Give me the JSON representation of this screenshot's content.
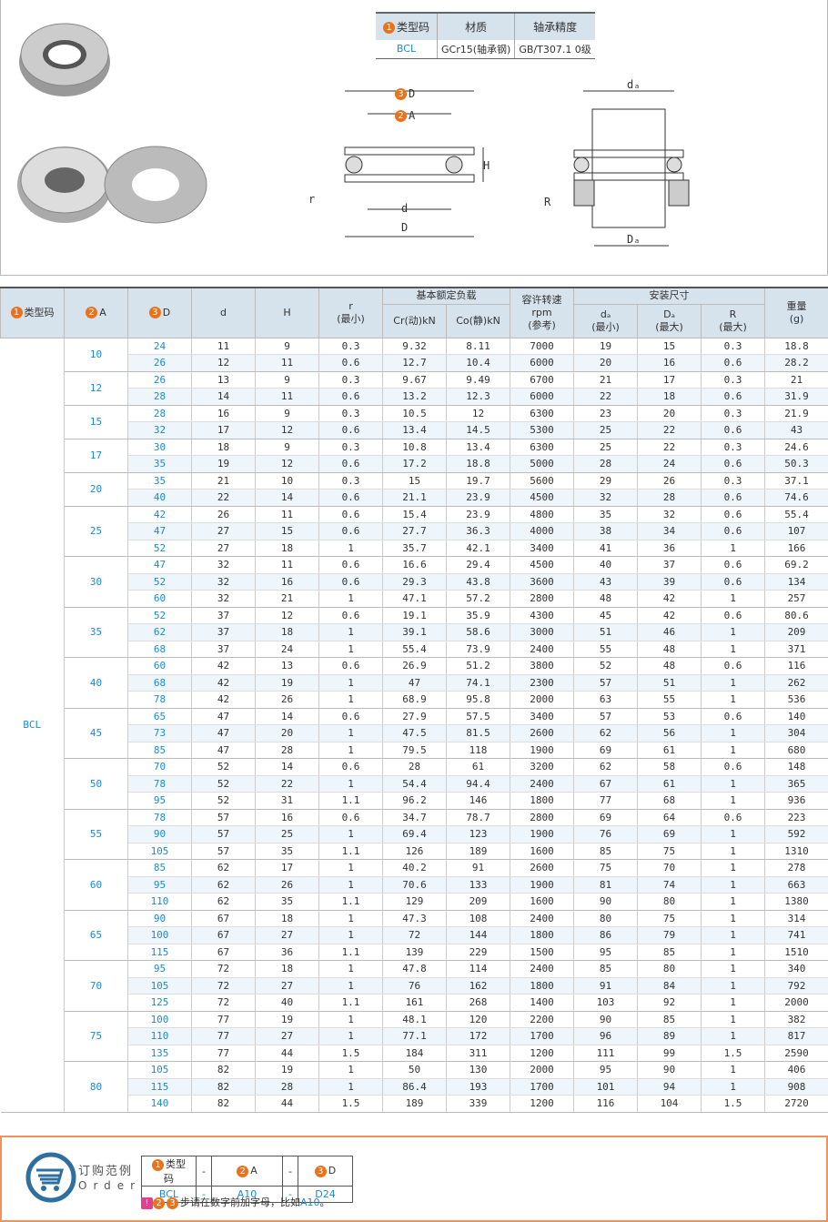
{
  "spec": {
    "headers": [
      "类型码",
      "材质",
      "轴承精度"
    ],
    "header_num": "1",
    "values": [
      "BCL",
      "GCr15(轴承钢)",
      "GB/T307.1 0级"
    ]
  },
  "drawing": {
    "label_D3": "D",
    "label_A2": "A",
    "num3": "3",
    "num2": "2",
    "H": "H",
    "r": "r",
    "d": "d",
    "D": "D",
    "da": "dₐ",
    "Da": "Dₐ",
    "R": "R"
  },
  "table": {
    "headers": {
      "type": "类型码",
      "A": "A",
      "D": "D",
      "d": "d",
      "H": "H",
      "r": "r",
      "r_sub": "(最小)",
      "load": "基本额定负载",
      "cr": "Cr(动)kN",
      "co": "Co(静)kN",
      "speed": "容许转速",
      "speed_unit": "rpm",
      "speed_sub": "(参考)",
      "install": "安装尺寸",
      "da": "dₐ",
      "da_sub": "(最小)",
      "Da": "Dₐ",
      "Da_sub": "(最大)",
      "R": "R",
      "R_sub": "(最大)",
      "weight": "重量",
      "weight_unit": "(g)",
      "n1": "1",
      "n2": "2",
      "n3": "3"
    },
    "type": "BCL",
    "groups": [
      {
        "A": "10",
        "rows": [
          [
            "24",
            "11",
            "9",
            "0.3",
            "9.32",
            "8.11",
            "7000",
            "19",
            "15",
            "0.3",
            "18.8"
          ],
          [
            "26",
            "12",
            "11",
            "0.6",
            "12.7",
            "10.4",
            "6000",
            "20",
            "16",
            "0.6",
            "28.2"
          ]
        ]
      },
      {
        "A": "12",
        "rows": [
          [
            "26",
            "13",
            "9",
            "0.3",
            "9.67",
            "9.49",
            "6700",
            "21",
            "17",
            "0.3",
            "21"
          ],
          [
            "28",
            "14",
            "11",
            "0.6",
            "13.2",
            "12.3",
            "6000",
            "22",
            "18",
            "0.6",
            "31.9"
          ]
        ]
      },
      {
        "A": "15",
        "rows": [
          [
            "28",
            "16",
            "9",
            "0.3",
            "10.5",
            "12",
            "6300",
            "23",
            "20",
            "0.3",
            "21.9"
          ],
          [
            "32",
            "17",
            "12",
            "0.6",
            "13.4",
            "14.5",
            "5300",
            "25",
            "22",
            "0.6",
            "43"
          ]
        ]
      },
      {
        "A": "17",
        "rows": [
          [
            "30",
            "18",
            "9",
            "0.3",
            "10.8",
            "13.4",
            "6300",
            "25",
            "22",
            "0.3",
            "24.6"
          ],
          [
            "35",
            "19",
            "12",
            "0.6",
            "17.2",
            "18.8",
            "5000",
            "28",
            "24",
            "0.6",
            "50.3"
          ]
        ]
      },
      {
        "A": "20",
        "rows": [
          [
            "35",
            "21",
            "10",
            "0.3",
            "15",
            "19.7",
            "5600",
            "29",
            "26",
            "0.3",
            "37.1"
          ],
          [
            "40",
            "22",
            "14",
            "0.6",
            "21.1",
            "23.9",
            "4500",
            "32",
            "28",
            "0.6",
            "74.6"
          ]
        ]
      },
      {
        "A": "25",
        "rows": [
          [
            "42",
            "26",
            "11",
            "0.6",
            "15.4",
            "23.9",
            "4800",
            "35",
            "32",
            "0.6",
            "55.4"
          ],
          [
            "47",
            "27",
            "15",
            "0.6",
            "27.7",
            "36.3",
            "4000",
            "38",
            "34",
            "0.6",
            "107"
          ],
          [
            "52",
            "27",
            "18",
            "1",
            "35.7",
            "42.1",
            "3400",
            "41",
            "36",
            "1",
            "166"
          ]
        ]
      },
      {
        "A": "30",
        "rows": [
          [
            "47",
            "32",
            "11",
            "0.6",
            "16.6",
            "29.4",
            "4500",
            "40",
            "37",
            "0.6",
            "69.2"
          ],
          [
            "52",
            "32",
            "16",
            "0.6",
            "29.3",
            "43.8",
            "3600",
            "43",
            "39",
            "0.6",
            "134"
          ],
          [
            "60",
            "32",
            "21",
            "1",
            "47.1",
            "57.2",
            "2800",
            "48",
            "42",
            "1",
            "257"
          ]
        ]
      },
      {
        "A": "35",
        "rows": [
          [
            "52",
            "37",
            "12",
            "0.6",
            "19.1",
            "35.9",
            "4300",
            "45",
            "42",
            "0.6",
            "80.6"
          ],
          [
            "62",
            "37",
            "18",
            "1",
            "39.1",
            "58.6",
            "3000",
            "51",
            "46",
            "1",
            "209"
          ],
          [
            "68",
            "37",
            "24",
            "1",
            "55.4",
            "73.9",
            "2400",
            "55",
            "48",
            "1",
            "371"
          ]
        ]
      },
      {
        "A": "40",
        "rows": [
          [
            "60",
            "42",
            "13",
            "0.6",
            "26.9",
            "51.2",
            "3800",
            "52",
            "48",
            "0.6",
            "116"
          ],
          [
            "68",
            "42",
            "19",
            "1",
            "47",
            "74.1",
            "2300",
            "57",
            "51",
            "1",
            "262"
          ],
          [
            "78",
            "42",
            "26",
            "1",
            "68.9",
            "95.8",
            "2000",
            "63",
            "55",
            "1",
            "536"
          ]
        ]
      },
      {
        "A": "45",
        "rows": [
          [
            "65",
            "47",
            "14",
            "0.6",
            "27.9",
            "57.5",
            "3400",
            "57",
            "53",
            "0.6",
            "140"
          ],
          [
            "73",
            "47",
            "20",
            "1",
            "47.5",
            "81.5",
            "2600",
            "62",
            "56",
            "1",
            "304"
          ],
          [
            "85",
            "47",
            "28",
            "1",
            "79.5",
            "118",
            "1900",
            "69",
            "61",
            "1",
            "680"
          ]
        ]
      },
      {
        "A": "50",
        "rows": [
          [
            "70",
            "52",
            "14",
            "0.6",
            "28",
            "61",
            "3200",
            "62",
            "58",
            "0.6",
            "148"
          ],
          [
            "78",
            "52",
            "22",
            "1",
            "54.4",
            "94.4",
            "2400",
            "67",
            "61",
            "1",
            "365"
          ],
          [
            "95",
            "52",
            "31",
            "1.1",
            "96.2",
            "146",
            "1800",
            "77",
            "68",
            "1",
            "936"
          ]
        ]
      },
      {
        "A": "55",
        "rows": [
          [
            "78",
            "57",
            "16",
            "0.6",
            "34.7",
            "78.7",
            "2800",
            "69",
            "64",
            "0.6",
            "223"
          ],
          [
            "90",
            "57",
            "25",
            "1",
            "69.4",
            "123",
            "1900",
            "76",
            "69",
            "1",
            "592"
          ],
          [
            "105",
            "57",
            "35",
            "1.1",
            "126",
            "189",
            "1600",
            "85",
            "75",
            "1",
            "1310"
          ]
        ]
      },
      {
        "A": "60",
        "rows": [
          [
            "85",
            "62",
            "17",
            "1",
            "40.2",
            "91",
            "2600",
            "75",
            "70",
            "1",
            "278"
          ],
          [
            "95",
            "62",
            "26",
            "1",
            "70.6",
            "133",
            "1900",
            "81",
            "74",
            "1",
            "663"
          ],
          [
            "110",
            "62",
            "35",
            "1.1",
            "129",
            "209",
            "1600",
            "90",
            "80",
            "1",
            "1380"
          ]
        ]
      },
      {
        "A": "65",
        "rows": [
          [
            "90",
            "67",
            "18",
            "1",
            "47.3",
            "108",
            "2400",
            "80",
            "75",
            "1",
            "314"
          ],
          [
            "100",
            "67",
            "27",
            "1",
            "72",
            "144",
            "1800",
            "86",
            "79",
            "1",
            "741"
          ],
          [
            "115",
            "67",
            "36",
            "1.1",
            "139",
            "229",
            "1500",
            "95",
            "85",
            "1",
            "1510"
          ]
        ]
      },
      {
        "A": "70",
        "rows": [
          [
            "95",
            "72",
            "18",
            "1",
            "47.8",
            "114",
            "2400",
            "85",
            "80",
            "1",
            "340"
          ],
          [
            "105",
            "72",
            "27",
            "1",
            "76",
            "162",
            "1800",
            "91",
            "84",
            "1",
            "792"
          ],
          [
            "125",
            "72",
            "40",
            "1.1",
            "161",
            "268",
            "1400",
            "103",
            "92",
            "1",
            "2000"
          ]
        ]
      },
      {
        "A": "75",
        "rows": [
          [
            "100",
            "77",
            "19",
            "1",
            "48.1",
            "120",
            "2200",
            "90",
            "85",
            "1",
            "382"
          ],
          [
            "110",
            "77",
            "27",
            "1",
            "77.1",
            "172",
            "1700",
            "96",
            "89",
            "1",
            "817"
          ],
          [
            "135",
            "77",
            "44",
            "1.5",
            "184",
            "311",
            "1200",
            "111",
            "99",
            "1.5",
            "2590"
          ]
        ]
      },
      {
        "A": "80",
        "rows": [
          [
            "105",
            "82",
            "19",
            "1",
            "50",
            "130",
            "2000",
            "95",
            "90",
            "1",
            "406"
          ],
          [
            "115",
            "82",
            "28",
            "1",
            "86.4",
            "193",
            "1700",
            "101",
            "94",
            "1",
            "908"
          ],
          [
            "140",
            "82",
            "44",
            "1.5",
            "189",
            "339",
            "1200",
            "116",
            "104",
            "1.5",
            "2720"
          ]
        ]
      }
    ]
  },
  "order": {
    "title": "订购范例",
    "subtitle": "Order",
    "headers": [
      "类型码",
      "-",
      "A",
      "-",
      "D"
    ],
    "values": [
      "BCL",
      "-",
      "A10",
      "-",
      "D24"
    ],
    "note_nums": [
      "2",
      "3"
    ],
    "note": "步请在数字前加字母，比如",
    "note_example": "A10",
    "note_end": "。"
  },
  "colors": {
    "accent": "#1a8ad4",
    "number_badge": "#e8731c",
    "header_bg": "#d6e2ec",
    "order_border": "#f0935a"
  }
}
